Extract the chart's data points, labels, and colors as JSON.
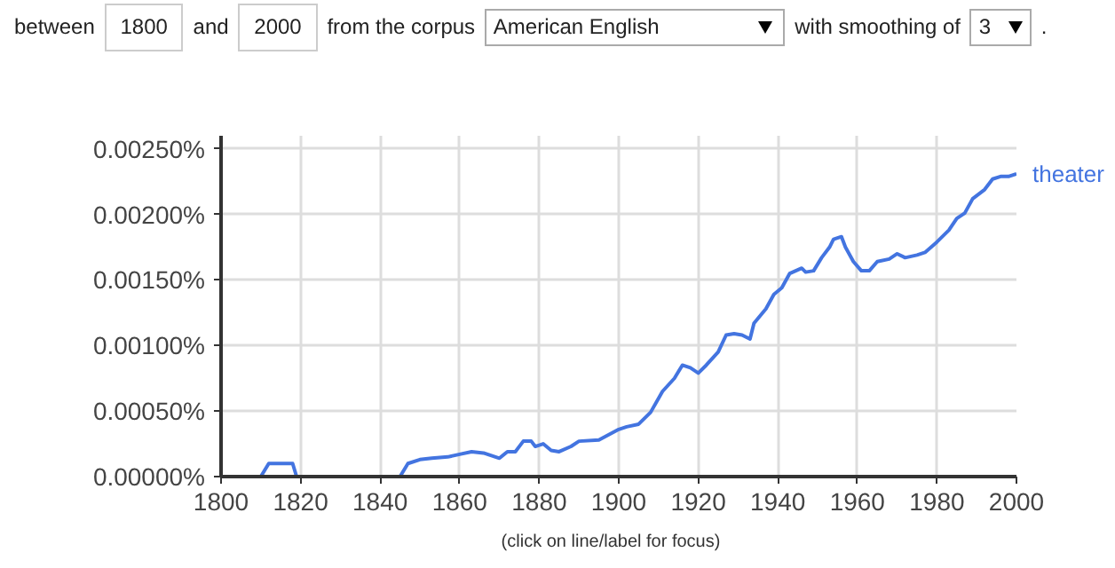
{
  "chart_data": {
    "type": "line",
    "annotations": [
      "between",
      "1800",
      "and",
      "2000",
      "from the corpus",
      "American English",
      "with smoothing of",
      "3",
      ".",
      "(click on line/label for focus)"
    ],
    "x": [
      1800,
      1805,
      1810,
      1812,
      1818,
      1819,
      1825,
      1830,
      1835,
      1842,
      1845,
      1847,
      1850,
      1853,
      1857,
      1860,
      1863,
      1866,
      1870,
      1872,
      1874,
      1876,
      1878,
      1879,
      1881,
      1883,
      1885,
      1888,
      1890,
      1895,
      1900,
      1902,
      1905,
      1908,
      1911,
      1914,
      1916,
      1918,
      1920,
      1922,
      1925,
      1927,
      1929,
      1931,
      1933,
      1934,
      1937,
      1939,
      1941,
      1943,
      1946,
      1947,
      1949,
      1951,
      1953,
      1954,
      1956,
      1957,
      1959,
      1961,
      1963,
      1965,
      1968,
      1970,
      1972,
      1975,
      1977,
      1980,
      1983,
      1985,
      1987,
      1989,
      1992,
      1994,
      1996,
      1998,
      2000
    ],
    "series": [
      {
        "name": "theater",
        "color": "#4374e0",
        "values": [
          0.0,
          0.0,
          0.0,
          0.0001,
          0.0001,
          0.0,
          0.0,
          0.0,
          0.0,
          0.0,
          0.0,
          0.0001,
          0.00013,
          0.00014,
          0.00015,
          0.00017,
          0.00019,
          0.00018,
          0.00014,
          0.00019,
          0.00019,
          0.00027,
          0.00027,
          0.00023,
          0.00025,
          0.0002,
          0.00019,
          0.00023,
          0.00027,
          0.00028,
          0.00036,
          0.00038,
          0.0004,
          0.00049,
          0.00065,
          0.00075,
          0.00085,
          0.00083,
          0.00079,
          0.00085,
          0.00095,
          0.00108,
          0.00109,
          0.00108,
          0.00105,
          0.00117,
          0.00128,
          0.00139,
          0.00144,
          0.00155,
          0.00159,
          0.00156,
          0.00157,
          0.00167,
          0.00175,
          0.00181,
          0.00183,
          0.00175,
          0.00164,
          0.00157,
          0.00157,
          0.00164,
          0.00166,
          0.0017,
          0.00167,
          0.00169,
          0.00171,
          0.00179,
          0.00188,
          0.00197,
          0.00201,
          0.00212,
          0.00219,
          0.00227,
          0.00229,
          0.00229,
          0.00231
        ]
      }
    ],
    "xlim": [
      1800,
      2000
    ],
    "xticks": [
      1800,
      1820,
      1840,
      1860,
      1880,
      1900,
      1920,
      1940,
      1960,
      1980,
      2000
    ],
    "ylim": [
      0,
      0.0026
    ],
    "yticks": [
      {
        "value": 0,
        "label": "0.00000%"
      },
      {
        "value": 0.0005,
        "label": "0.00050%"
      },
      {
        "value": 0.001,
        "label": "0.00100%"
      },
      {
        "value": 0.0015,
        "label": "0.00150%"
      },
      {
        "value": 0.002,
        "label": "0.00200%"
      },
      {
        "value": 0.0025,
        "label": "0.00250%"
      }
    ],
    "grid": true,
    "marker": "none",
    "line_style": "solid"
  }
}
